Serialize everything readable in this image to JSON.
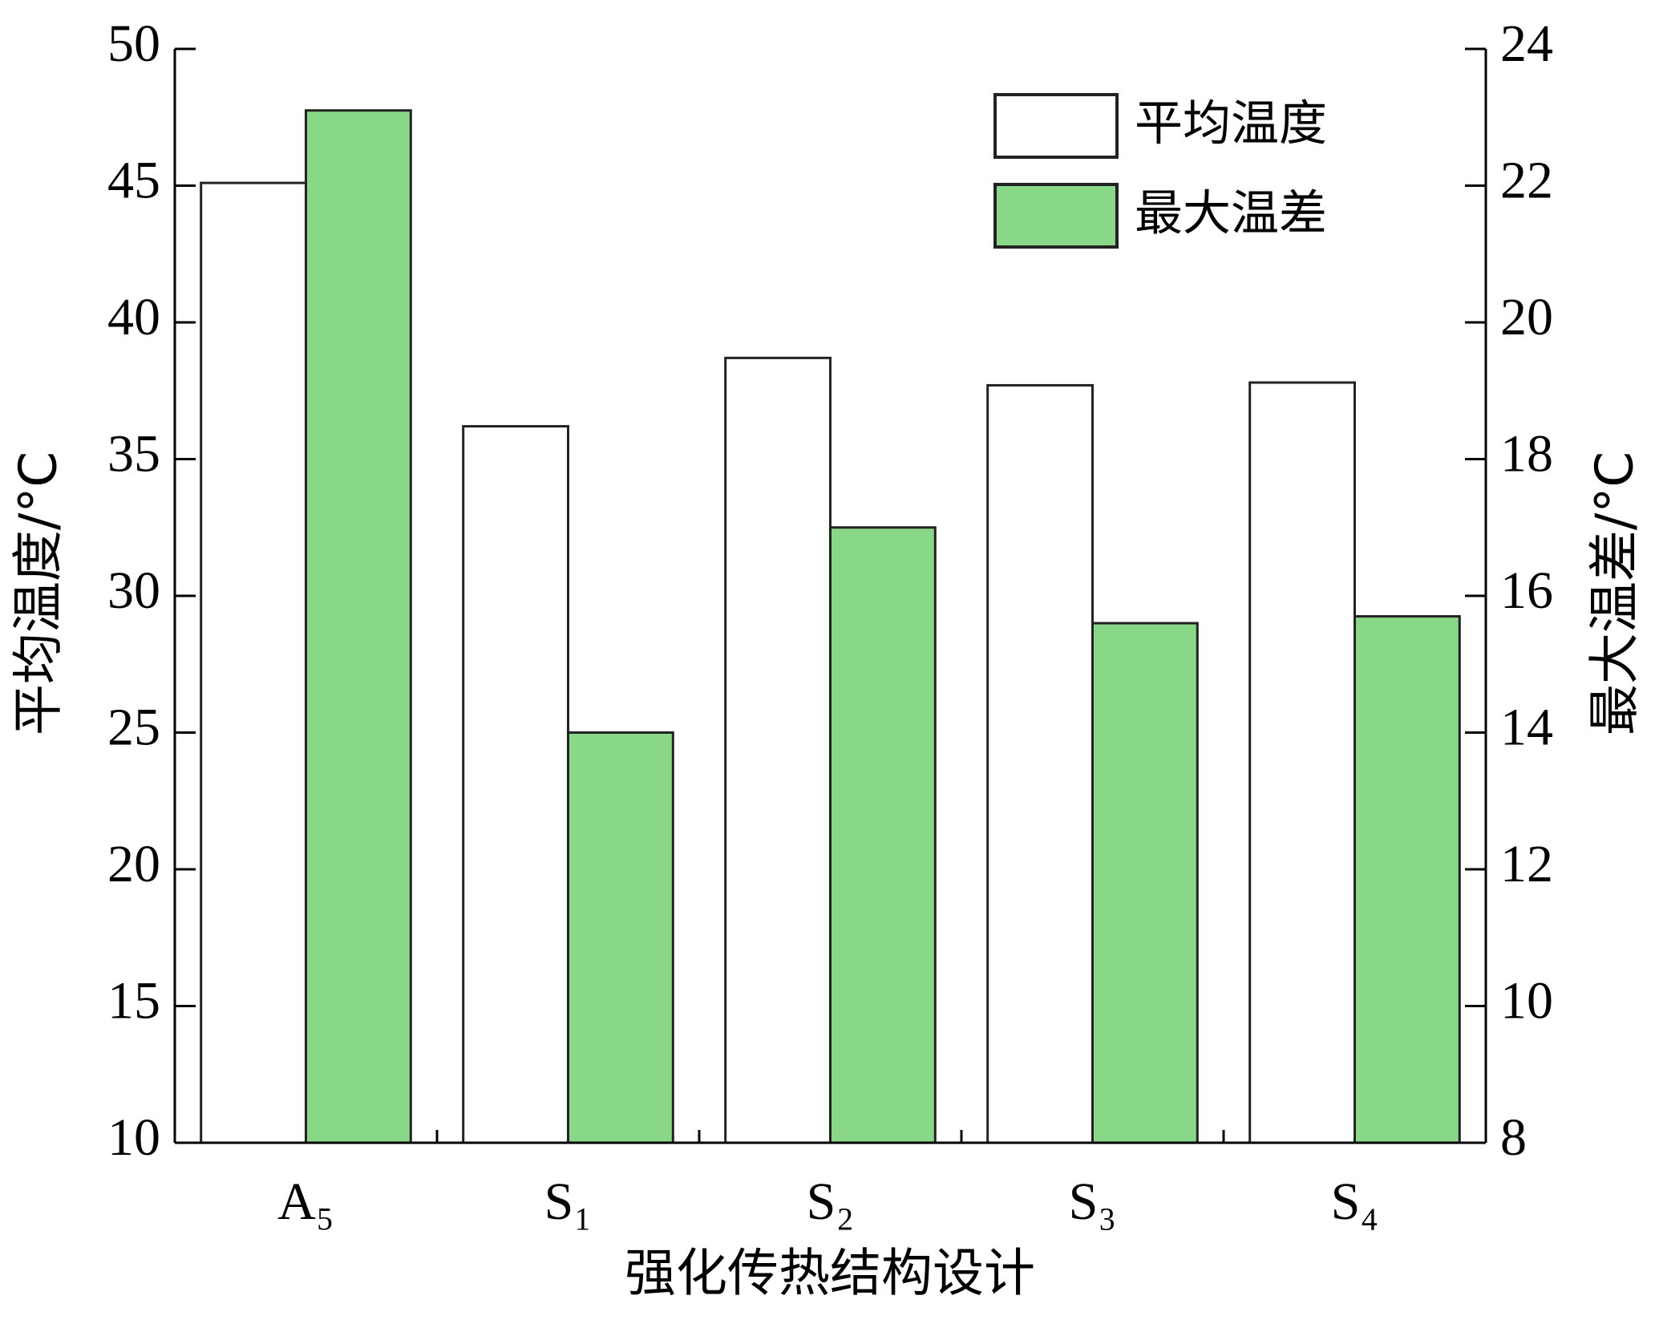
{
  "chart_data": {
    "type": "bar",
    "x_label": "强化传热结构设计",
    "y_label": "平均温度/°C",
    "y2_label": "最大温差/°C",
    "categories": [
      "A₅",
      "S₁",
      "S₂",
      "S₃",
      "S₄"
    ],
    "series": [
      {
        "name": "平均温度",
        "color": "#ffffff",
        "values": [
          45.1,
          36.2,
          38.7,
          37.7,
          37.8
        ]
      },
      {
        "name": "最大温差",
        "color": "#88d888",
        "axis": "y2",
        "values": [
          23.1,
          14.0,
          17.0,
          15.6,
          15.7
        ]
      }
    ],
    "ylim": [
      10,
      50
    ],
    "yticks": [
      10,
      15,
      20,
      25,
      30,
      35,
      40,
      45,
      50
    ],
    "y2lim": [
      8,
      24
    ],
    "y2ticks": [
      8,
      10,
      12,
      14,
      16,
      18,
      20,
      22,
      24
    ],
    "legend": "upper right"
  }
}
